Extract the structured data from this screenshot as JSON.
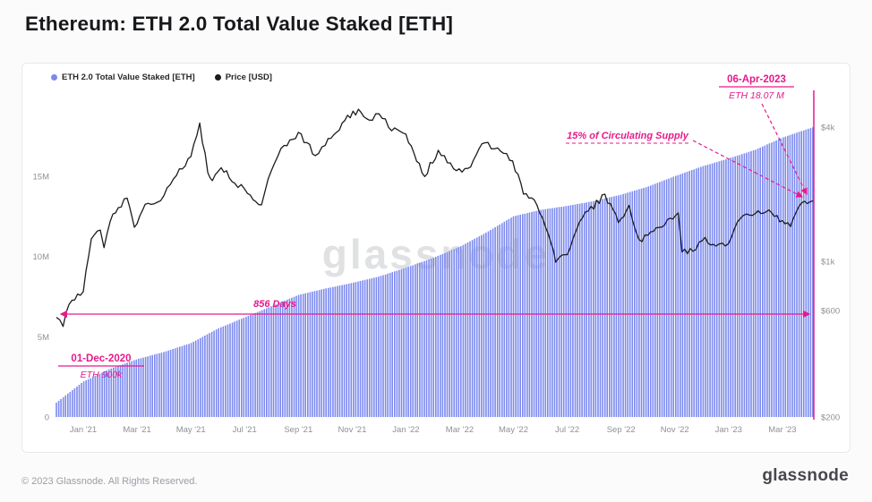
{
  "page": {
    "title": "Ethereum: ETH 2.0 Total Value Staked [ETH]",
    "watermark": "glassnode",
    "footer_copyright": "© 2023 Glassnode. All Rights Reserved.",
    "footer_logo": "glassnode"
  },
  "legend": {
    "items": [
      {
        "label": "ETH 2.0 Total Value Staked [ETH]",
        "color": "#7b89ef"
      },
      {
        "label": "Price [USD]",
        "color": "#1c1c1e"
      }
    ]
  },
  "colors": {
    "staked_bars": "#7b89ef",
    "price_line": "#1c1c1e",
    "annotation_pink": "#e61a8c",
    "axis_text": "#8e9196"
  },
  "chart_data": {
    "type": "combo",
    "title": "Ethereum: ETH 2.0 Total Value Staked [ETH]",
    "x_axis": {
      "unit": "months since 01-Dec-2020",
      "start": 0,
      "end": 28.17,
      "ticks": [
        {
          "t": 1,
          "label": "Jan '21"
        },
        {
          "t": 3,
          "label": "Mar '21"
        },
        {
          "t": 5,
          "label": "May '21"
        },
        {
          "t": 7,
          "label": "Jul '21"
        },
        {
          "t": 9,
          "label": "Sep '21"
        },
        {
          "t": 11,
          "label": "Nov '21"
        },
        {
          "t": 13,
          "label": "Jan '22"
        },
        {
          "t": 15,
          "label": "Mar '22"
        },
        {
          "t": 17,
          "label": "May '22"
        },
        {
          "t": 19,
          "label": "Jul '22"
        },
        {
          "t": 21,
          "label": "Sep '22"
        },
        {
          "t": 23,
          "label": "Nov '22"
        },
        {
          "t": 25,
          "label": "Jan '23"
        },
        {
          "t": 27,
          "label": "Mar '23"
        }
      ]
    },
    "y_left": {
      "series": "ETH 2.0 Total Value Staked",
      "unit": "ETH (millions)",
      "scale": "linear",
      "ticks": [
        {
          "v": 0,
          "label": "0"
        },
        {
          "v": 5,
          "label": "5M"
        },
        {
          "v": 10,
          "label": "10M"
        },
        {
          "v": 15,
          "label": "15M"
        }
      ]
    },
    "y_right": {
      "series": "Price",
      "unit": "USD",
      "scale": "log",
      "ticks": [
        {
          "v": 200,
          "label": "$200"
        },
        {
          "v": 600,
          "label": "$600"
        },
        {
          "v": 1000,
          "label": "$1k"
        },
        {
          "v": 4000,
          "label": "$4k"
        }
      ]
    },
    "series": [
      {
        "name": "ETH 2.0 Total Value Staked [ETH]",
        "type": "bar",
        "axis": "left",
        "x_months": [
          0,
          1,
          2,
          3,
          4,
          5,
          6,
          7,
          8,
          9,
          10,
          11,
          12,
          13,
          14,
          15,
          16,
          17,
          18,
          19,
          20,
          21,
          22,
          23,
          24,
          25,
          26,
          27,
          28.17
        ],
        "values_m_eth": [
          0.9,
          2.2,
          3.0,
          3.6,
          4.05,
          4.6,
          5.5,
          6.2,
          6.9,
          7.6,
          8.0,
          8.35,
          8.75,
          9.3,
          9.9,
          10.6,
          11.5,
          12.5,
          12.9,
          13.15,
          13.45,
          13.85,
          14.35,
          15.0,
          15.6,
          16.1,
          16.65,
          17.4,
          18.07
        ]
      },
      {
        "name": "Price [USD]",
        "type": "line",
        "axis": "right",
        "x_months": [
          0,
          0.25,
          0.47,
          1.0,
          1.3,
          1.63,
          1.77,
          2.0,
          2.3,
          2.63,
          2.9,
          3.3,
          3.63,
          4.0,
          4.47,
          5.0,
          5.33,
          5.63,
          5.8,
          6.13,
          6.63,
          7.0,
          7.63,
          8.0,
          8.47,
          9.0,
          9.63,
          10.0,
          10.63,
          11.23,
          11.63,
          12.0,
          12.47,
          13.0,
          13.7,
          14.2,
          14.77,
          15.3,
          15.93,
          16.3,
          16.97,
          17.37,
          17.87,
          18.4,
          18.57,
          19.0,
          19.57,
          20.4,
          20.9,
          21.3,
          21.67,
          22.0,
          22.83,
          23.13,
          23.27,
          23.67,
          24.13,
          24.53,
          25.0,
          25.43,
          25.67,
          26.0,
          26.5,
          27.3,
          27.7,
          28.17
        ],
        "values_usd": [
          560,
          510,
          640,
          730,
          1260,
          1380,
          1150,
          1510,
          1740,
          1920,
          1420,
          1800,
          1810,
          1970,
          2430,
          2950,
          4170,
          2500,
          2300,
          2630,
          2240,
          2110,
          1790,
          2560,
          3310,
          3790,
          2980,
          3310,
          4170,
          4810,
          4300,
          4590,
          3850,
          3720,
          2400,
          3150,
          2600,
          2610,
          3400,
          3200,
          2820,
          2000,
          1790,
          1200,
          990,
          1070,
          1570,
          2000,
          1490,
          1780,
          1250,
          1310,
          1560,
          1650,
          1100,
          1110,
          1280,
          1170,
          1200,
          1550,
          1630,
          1640,
          1700,
          1430,
          1820,
          1870
        ]
      }
    ],
    "annotations": {
      "start_event": {
        "title": "01-Dec-2020",
        "subtitle": "ETH 900k",
        "t": 0,
        "value_m_eth": 0.9
      },
      "end_event": {
        "title": "06-Apr-2023",
        "subtitle": "ETH 18.07 M",
        "t": 28.17,
        "value_m_eth": 18.07
      },
      "supply_note": {
        "text": "15% of Circulating Supply"
      },
      "duration": {
        "text": "856 Days",
        "t_from": 0,
        "t_to": 28.17
      }
    }
  }
}
